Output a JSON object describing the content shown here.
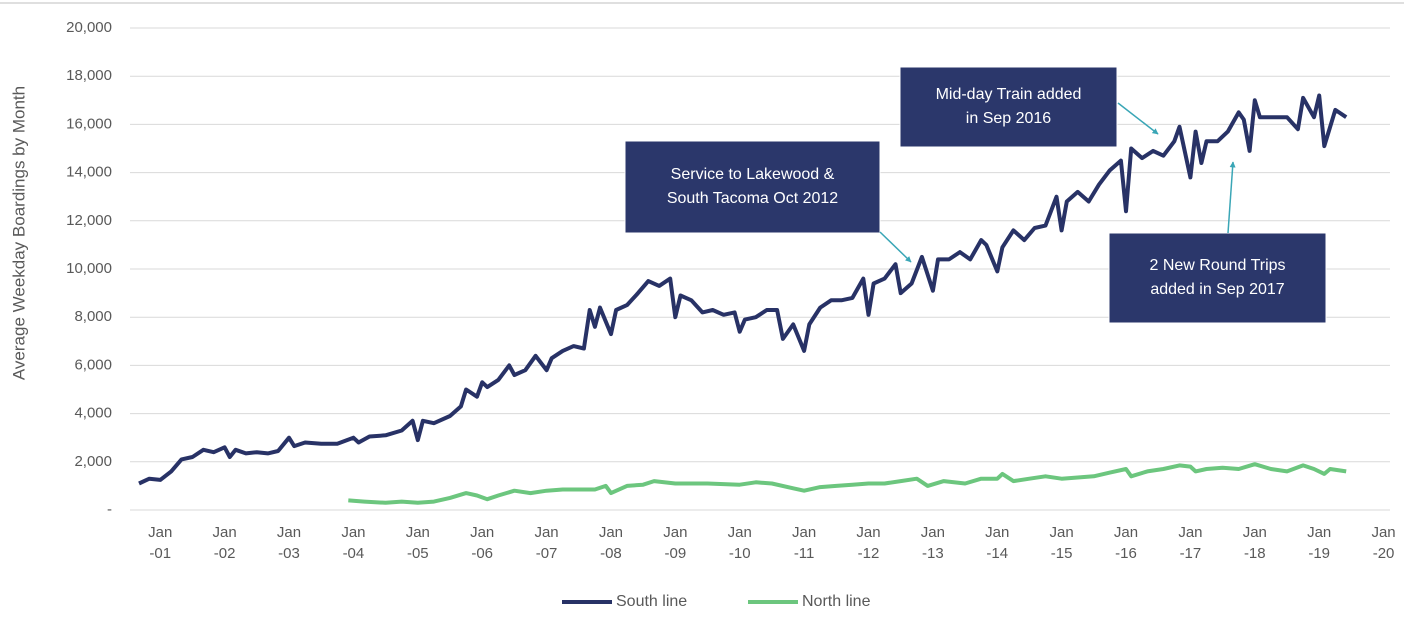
{
  "chart_data": {
    "type": "line",
    "y_label": "Average Weekday Boardings by Month",
    "xlim": [
      2000.53,
      2020.1
    ],
    "xticks": [
      {
        "value": 2001,
        "label": "Jan -01"
      },
      {
        "value": 2002,
        "label": "Jan -02"
      },
      {
        "value": 2003,
        "label": "Jan -03"
      },
      {
        "value": 2004,
        "label": "Jan -04"
      },
      {
        "value": 2005,
        "label": "Jan -05"
      },
      {
        "value": 2006,
        "label": "Jan -06"
      },
      {
        "value": 2007,
        "label": "Jan -07"
      },
      {
        "value": 2008,
        "label": "Jan -08"
      },
      {
        "value": 2009,
        "label": "Jan -09"
      },
      {
        "value": 2010,
        "label": "Jan -10"
      },
      {
        "value": 2011,
        "label": "Jan -11"
      },
      {
        "value": 2012,
        "label": "Jan -12"
      },
      {
        "value": 2013,
        "label": "Jan -13"
      },
      {
        "value": 2014,
        "label": "Jan -14"
      },
      {
        "value": 2015,
        "label": "Jan -15"
      },
      {
        "value": 2016,
        "label": "Jan -16"
      },
      {
        "value": 2017,
        "label": "Jan -17"
      },
      {
        "value": 2018,
        "label": "Jan -18"
      },
      {
        "value": 2019,
        "label": "Jan -19"
      },
      {
        "value": 2020,
        "label": "Jan -20"
      }
    ],
    "ylim": [
      0,
      20000
    ],
    "yticks": [
      {
        "value": 0,
        "label": "-"
      },
      {
        "value": 2000,
        "label": "2,000"
      },
      {
        "value": 4000,
        "label": "4,000"
      },
      {
        "value": 6000,
        "label": "6,000"
      },
      {
        "value": 8000,
        "label": "8,000"
      },
      {
        "value": 10000,
        "label": "10,000"
      },
      {
        "value": 12000,
        "label": "12,000"
      },
      {
        "value": 14000,
        "label": "14,000"
      },
      {
        "value": 16000,
        "label": "16,000"
      },
      {
        "value": 18000,
        "label": "18,000"
      },
      {
        "value": 20000,
        "label": "20,000"
      }
    ],
    "grid": true,
    "legend": "bottom",
    "series": [
      {
        "name": "South line",
        "color": "#283266",
        "x": [
          2000.67,
          2000.83,
          2001.0,
          2001.17,
          2001.33,
          2001.5,
          2001.67,
          2001.83,
          2002.0,
          2002.08,
          2002.17,
          2002.33,
          2002.5,
          2002.67,
          2002.83,
          2003.0,
          2003.08,
          2003.25,
          2003.5,
          2003.75,
          2004.0,
          2004.08,
          2004.25,
          2004.5,
          2004.75,
          2004.92,
          2005.0,
          2005.08,
          2005.25,
          2005.5,
          2005.67,
          2005.75,
          2005.92,
          2006.0,
          2006.08,
          2006.25,
          2006.42,
          2006.5,
          2006.67,
          2006.83,
          2007.0,
          2007.08,
          2007.25,
          2007.42,
          2007.58,
          2007.67,
          2007.75,
          2007.83,
          2008.0,
          2008.08,
          2008.25,
          2008.42,
          2008.58,
          2008.75,
          2008.92,
          2009.0,
          2009.08,
          2009.25,
          2009.42,
          2009.58,
          2009.75,
          2009.92,
          2010.0,
          2010.08,
          2010.25,
          2010.42,
          2010.58,
          2010.67,
          2010.83,
          2011.0,
          2011.08,
          2011.25,
          2011.42,
          2011.58,
          2011.75,
          2011.92,
          2012.0,
          2012.08,
          2012.25,
          2012.42,
          2012.5,
          2012.67,
          2012.83,
          2013.0,
          2013.08,
          2013.25,
          2013.42,
          2013.58,
          2013.75,
          2013.83,
          2014.0,
          2014.08,
          2014.25,
          2014.42,
          2014.58,
          2014.75,
          2014.92,
          2015.0,
          2015.08,
          2015.25,
          2015.42,
          2015.58,
          2015.75,
          2015.92,
          2016.0,
          2016.08,
          2016.25,
          2016.42,
          2016.58,
          2016.75,
          2016.83,
          2017.0,
          2017.08,
          2017.17,
          2017.25,
          2017.42,
          2017.58,
          2017.75,
          2017.83,
          2017.92,
          2018.0,
          2018.08,
          2018.25,
          2018.5,
          2018.67,
          2018.75,
          2018.92,
          2019.0,
          2019.08,
          2019.25,
          2019.42
        ],
        "values": [
          1100,
          1300,
          1250,
          1600,
          2100,
          2200,
          2500,
          2400,
          2600,
          2200,
          2500,
          2350,
          2400,
          2350,
          2450,
          3000,
          2650,
          2800,
          2750,
          2750,
          3000,
          2800,
          3050,
          3100,
          3300,
          3700,
          2900,
          3700,
          3600,
          3900,
          4300,
          5000,
          4700,
          5300,
          5100,
          5400,
          6000,
          5600,
          5800,
          6400,
          5800,
          6300,
          6600,
          6800,
          6700,
          8300,
          7600,
          8400,
          7300,
          8300,
          8500,
          9000,
          9500,
          9300,
          9600,
          8000,
          8900,
          8700,
          8200,
          8300,
          8100,
          8200,
          7400,
          7900,
          8000,
          8300,
          8300,
          7100,
          7700,
          6600,
          7700,
          8400,
          8700,
          8700,
          8800,
          9600,
          8100,
          9400,
          9600,
          10200,
          9000,
          9400,
          10500,
          9100,
          10400,
          10400,
          10700,
          10400,
          11200,
          11000,
          9900,
          10900,
          11600,
          11200,
          11700,
          11800,
          13000,
          11600,
          12800,
          13200,
          12800,
          13500,
          14100,
          14500,
          12400,
          15000,
          14600,
          14900,
          14700,
          15300,
          15900,
          13800,
          15700,
          14400,
          15300,
          15300,
          15700,
          16500,
          16200,
          14900,
          17000,
          16300,
          16300,
          16300,
          15800,
          17100,
          16300,
          17200,
          15100,
          16600,
          16300
        ]
      },
      {
        "name": "North line",
        "color": "#6cc67e",
        "x": [
          2003.92,
          2004.17,
          2004.5,
          2004.75,
          2005.0,
          2005.25,
          2005.5,
          2005.75,
          2005.92,
          2006.08,
          2006.25,
          2006.5,
          2006.75,
          2007.0,
          2007.25,
          2007.5,
          2007.75,
          2007.92,
          2008.0,
          2008.25,
          2008.5,
          2008.67,
          2009.0,
          2009.25,
          2009.5,
          2010.0,
          2010.25,
          2010.5,
          2010.83,
          2011.0,
          2011.25,
          2011.5,
          2011.75,
          2012.0,
          2012.25,
          2012.5,
          2012.75,
          2012.92,
          2013.17,
          2013.5,
          2013.75,
          2014.0,
          2014.08,
          2014.25,
          2014.5,
          2014.75,
          2015.0,
          2015.25,
          2015.5,
          2015.75,
          2016.0,
          2016.08,
          2016.33,
          2016.58,
          2016.83,
          2017.0,
          2017.08,
          2017.25,
          2017.5,
          2017.75,
          2018.0,
          2018.25,
          2018.5,
          2018.75,
          2018.92,
          2019.08,
          2019.17,
          2019.42
        ],
        "values": [
          400,
          350,
          300,
          350,
          300,
          350,
          500,
          700,
          600,
          450,
          600,
          800,
          700,
          800,
          850,
          850,
          850,
          1000,
          700,
          1000,
          1050,
          1200,
          1100,
          1100,
          1100,
          1050,
          1150,
          1100,
          900,
          800,
          950,
          1000,
          1050,
          1100,
          1100,
          1200,
          1300,
          1000,
          1200,
          1100,
          1300,
          1300,
          1500,
          1200,
          1300,
          1400,
          1300,
          1350,
          1400,
          1550,
          1700,
          1400,
          1600,
          1700,
          1850,
          1800,
          1600,
          1700,
          1750,
          1700,
          1900,
          1700,
          1600,
          1850,
          1700,
          1500,
          1700,
          1600
        ]
      }
    ],
    "annotations": [
      {
        "lines": [
          "Service to Lakewood &",
          "South Tacoma Oct 2012"
        ]
      },
      {
        "lines": [
          "Mid-day Train added",
          "in Sep 2016"
        ]
      },
      {
        "lines": [
          "2 New Round Trips",
          "added in Sep 2017"
        ]
      }
    ]
  }
}
